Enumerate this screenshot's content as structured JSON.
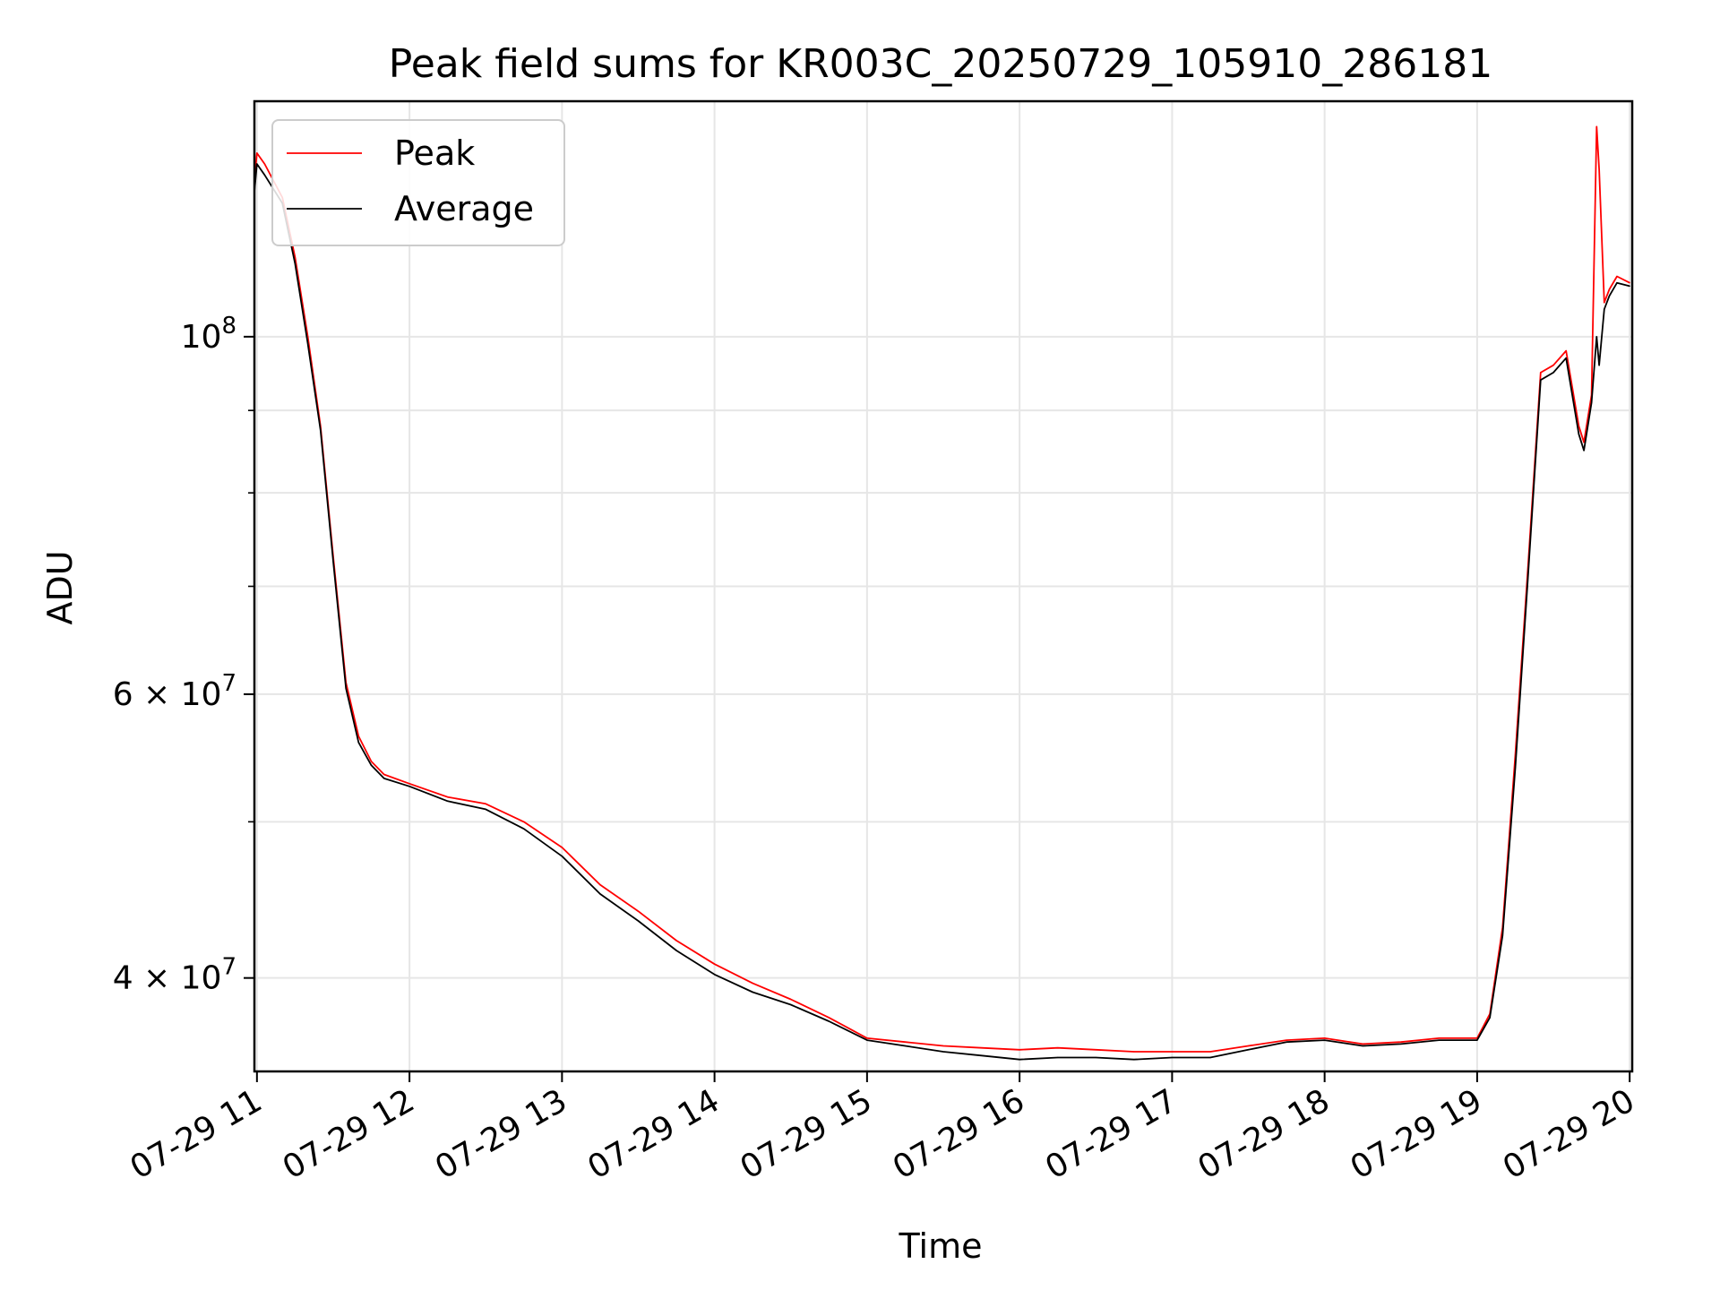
{
  "chart_data": {
    "type": "line",
    "title": "Peak field sums for KR003C_20250729_105910_286181",
    "xlabel": "Time",
    "ylabel": "ADU",
    "y_scale": "log",
    "ylim": [
      35000000,
      140000000
    ],
    "xlim": [
      "2025-07-29 10:59",
      "2025-07-29 20:01"
    ],
    "x_ticks": [
      {
        "t": "2025-07-29 11:00",
        "label": "07-29 11"
      },
      {
        "t": "2025-07-29 12:00",
        "label": "07-29 12"
      },
      {
        "t": "2025-07-29 13:00",
        "label": "07-29 13"
      },
      {
        "t": "2025-07-29 14:00",
        "label": "07-29 14"
      },
      {
        "t": "2025-07-29 15:00",
        "label": "07-29 15"
      },
      {
        "t": "2025-07-29 16:00",
        "label": "07-29 16"
      },
      {
        "t": "2025-07-29 17:00",
        "label": "07-29 17"
      },
      {
        "t": "2025-07-29 18:00",
        "label": "07-29 18"
      },
      {
        "t": "2025-07-29 19:00",
        "label": "07-29 19"
      },
      {
        "t": "2025-07-29 20:00",
        "label": "07-29 20"
      }
    ],
    "y_ticks_major": [
      {
        "value": 40000000,
        "label_base": "4 × 10",
        "label_exp": "7"
      },
      {
        "value": 60000000,
        "label_base": "6 × 10",
        "label_exp": "7"
      },
      {
        "value": 100000000,
        "label_base": "10",
        "label_exp": "8"
      }
    ],
    "y_ticks_minor": [
      50000000,
      70000000,
      80000000,
      90000000
    ],
    "grid": true,
    "legend_position": "top-left",
    "series": [
      {
        "name": "Peak",
        "color": "#ff0000",
        "x": [
          "2025-07-29 10:59",
          "2025-07-29 11:00",
          "2025-07-29 11:03",
          "2025-07-29 11:10",
          "2025-07-29 11:15",
          "2025-07-29 11:20",
          "2025-07-29 11:25",
          "2025-07-29 11:30",
          "2025-07-29 11:35",
          "2025-07-29 11:40",
          "2025-07-29 11:45",
          "2025-07-29 11:50",
          "2025-07-29 12:00",
          "2025-07-29 12:15",
          "2025-07-29 12:30",
          "2025-07-29 12:45",
          "2025-07-29 13:00",
          "2025-07-29 13:15",
          "2025-07-29 13:30",
          "2025-07-29 13:45",
          "2025-07-29 14:00",
          "2025-07-29 14:15",
          "2025-07-29 14:30",
          "2025-07-29 14:45",
          "2025-07-29 15:00",
          "2025-07-29 15:15",
          "2025-07-29 15:30",
          "2025-07-29 15:45",
          "2025-07-29 16:00",
          "2025-07-29 16:15",
          "2025-07-29 16:30",
          "2025-07-29 16:45",
          "2025-07-29 17:00",
          "2025-07-29 17:15",
          "2025-07-29 17:30",
          "2025-07-29 17:45",
          "2025-07-29 18:00",
          "2025-07-29 18:15",
          "2025-07-29 18:30",
          "2025-07-29 18:45",
          "2025-07-29 19:00",
          "2025-07-29 19:05",
          "2025-07-29 19:10",
          "2025-07-29 19:15",
          "2025-07-29 19:20",
          "2025-07-29 19:25",
          "2025-07-29 19:30",
          "2025-07-29 19:35",
          "2025-07-29 19:40",
          "2025-07-29 19:42",
          "2025-07-29 19:45",
          "2025-07-29 19:47",
          "2025-07-29 19:48",
          "2025-07-29 19:50",
          "2025-07-29 19:52",
          "2025-07-29 19:55",
          "2025-07-29 20:00"
        ],
        "values": [
          125000000,
          130000000,
          128000000,
          122000000,
          112000000,
          100000000,
          88000000,
          73000000,
          61000000,
          56500000,
          54500000,
          53500000,
          52800000,
          51800000,
          51300000,
          50000000,
          48200000,
          45700000,
          44000000,
          42200000,
          40800000,
          39700000,
          38800000,
          37800000,
          36700000,
          36500000,
          36300000,
          36200000,
          36100000,
          36200000,
          36100000,
          36000000,
          36000000,
          36000000,
          36300000,
          36600000,
          36700000,
          36400000,
          36500000,
          36700000,
          36700000,
          38000000,
          43000000,
          55000000,
          72000000,
          95000000,
          96000000,
          98000000,
          88000000,
          86000000,
          92000000,
          135000000,
          127000000,
          105000000,
          107000000,
          109000000,
          108000000
        ]
      },
      {
        "name": "Average",
        "color": "#000000",
        "x": [
          "2025-07-29 10:59",
          "2025-07-29 11:00",
          "2025-07-29 11:03",
          "2025-07-29 11:10",
          "2025-07-29 11:15",
          "2025-07-29 11:20",
          "2025-07-29 11:25",
          "2025-07-29 11:30",
          "2025-07-29 11:35",
          "2025-07-29 11:40",
          "2025-07-29 11:45",
          "2025-07-29 11:50",
          "2025-07-29 12:00",
          "2025-07-29 12:15",
          "2025-07-29 12:30",
          "2025-07-29 12:45",
          "2025-07-29 13:00",
          "2025-07-29 13:15",
          "2025-07-29 13:30",
          "2025-07-29 13:45",
          "2025-07-29 14:00",
          "2025-07-29 14:15",
          "2025-07-29 14:30",
          "2025-07-29 14:45",
          "2025-07-29 15:00",
          "2025-07-29 15:15",
          "2025-07-29 15:30",
          "2025-07-29 15:45",
          "2025-07-29 16:00",
          "2025-07-29 16:15",
          "2025-07-29 16:30",
          "2025-07-29 16:45",
          "2025-07-29 17:00",
          "2025-07-29 17:15",
          "2025-07-29 17:30",
          "2025-07-29 17:45",
          "2025-07-29 18:00",
          "2025-07-29 18:15",
          "2025-07-29 18:30",
          "2025-07-29 18:45",
          "2025-07-29 19:00",
          "2025-07-29 19:05",
          "2025-07-29 19:10",
          "2025-07-29 19:15",
          "2025-07-29 19:20",
          "2025-07-29 19:25",
          "2025-07-29 19:30",
          "2025-07-29 19:35",
          "2025-07-29 19:40",
          "2025-07-29 19:42",
          "2025-07-29 19:45",
          "2025-07-29 19:47",
          "2025-07-29 19:48",
          "2025-07-29 19:50",
          "2025-07-29 19:52",
          "2025-07-29 19:55",
          "2025-07-29 20:00"
        ],
        "values": [
          123000000,
          128000000,
          126000000,
          121000000,
          111000000,
          99000000,
          87500000,
          72500000,
          60500000,
          56000000,
          54200000,
          53200000,
          52600000,
          51500000,
          50900000,
          49500000,
          47600000,
          45100000,
          43400000,
          41600000,
          40200000,
          39200000,
          38500000,
          37600000,
          36600000,
          36300000,
          36000000,
          35800000,
          35600000,
          35700000,
          35700000,
          35600000,
          35700000,
          35700000,
          36100000,
          36500000,
          36600000,
          36300000,
          36400000,
          36600000,
          36600000,
          37800000,
          42500000,
          54000000,
          71000000,
          94000000,
          95000000,
          97000000,
          87000000,
          85000000,
          91000000,
          100000000,
          96000000,
          104000000,
          106000000,
          108000000,
          107500000
        ]
      }
    ]
  }
}
